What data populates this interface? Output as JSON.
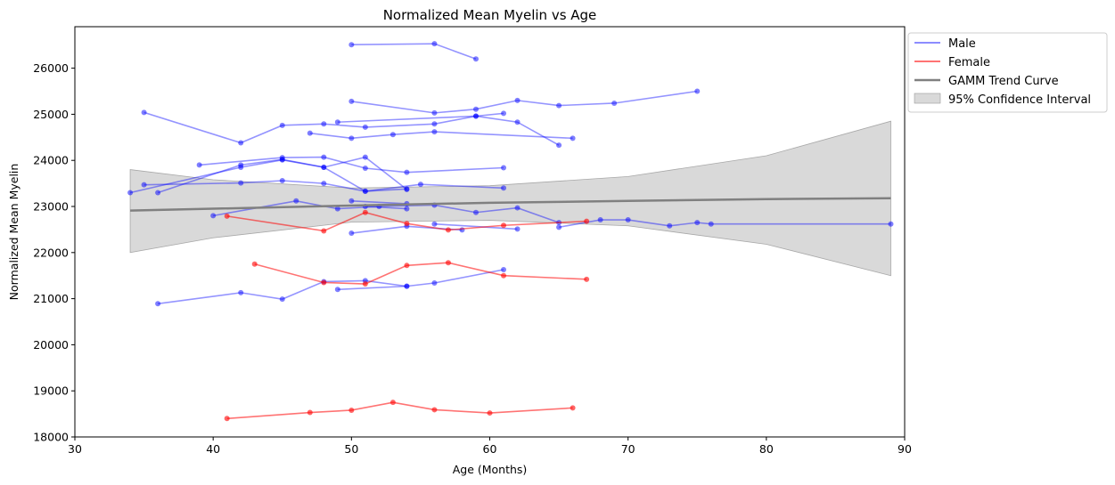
{
  "chart_data": {
    "type": "line",
    "title": "Normalized Mean Myelin vs Age",
    "xlabel": "Age (Months)",
    "ylabel": "Normalized Mean Myelin",
    "xlim": [
      30,
      90
    ],
    "ylim": [
      18000,
      26900
    ],
    "x_ticks": [
      "30",
      "40",
      "50",
      "60",
      "70",
      "80",
      "90"
    ],
    "y_ticks": [
      "18000",
      "19000",
      "20000",
      "21000",
      "22000",
      "23000",
      "24000",
      "25000",
      "26000"
    ],
    "colors": {
      "male": "#0000ff",
      "female": "#ff0000",
      "trend": "#808080",
      "ci": "#c0c0c0"
    },
    "legend": {
      "placement": "outside-top-right",
      "entries": [
        "Male",
        "Female",
        "GAMM Trend Curve",
        "95% Confidence Interval"
      ]
    },
    "trend": {
      "x": [
        34,
        50,
        60,
        70,
        80,
        89
      ],
      "y": [
        22910,
        23020,
        23080,
        23120,
        23160,
        23180
      ]
    },
    "confidence_interval": {
      "x": [
        34,
        40,
        50,
        60,
        70,
        80,
        89
      ],
      "upper": [
        23800,
        23580,
        23400,
        23450,
        23650,
        24100,
        24850
      ],
      "lower": [
        22000,
        22320,
        22660,
        22700,
        22580,
        22180,
        21500
      ]
    },
    "series": [
      {
        "group": "male",
        "x": [
          50,
          56,
          59
        ],
        "y": [
          26510,
          26530,
          26200
        ]
      },
      {
        "group": "male",
        "x": [
          50,
          56,
          59,
          62,
          65,
          69,
          75
        ],
        "y": [
          25280,
          25030,
          25110,
          25300,
          25190,
          25240,
          25500
        ]
      },
      {
        "group": "male",
        "x": [
          35,
          42,
          45,
          48,
          51,
          56,
          59,
          61
        ],
        "y": [
          25040,
          24380,
          24760,
          24790,
          24720,
          24790,
          24960,
          25020
        ]
      },
      {
        "group": "male",
        "x": [
          47,
          50,
          53,
          56,
          66
        ],
        "y": [
          24590,
          24480,
          24560,
          24620,
          24480
        ]
      },
      {
        "group": "male",
        "x": [
          49,
          59,
          62,
          65
        ],
        "y": [
          24830,
          24960,
          24830,
          24330
        ]
      },
      {
        "group": "male",
        "x": [
          39,
          45,
          48,
          51,
          54,
          61
        ],
        "y": [
          23900,
          24060,
          24070,
          23830,
          23740,
          23840
        ]
      },
      {
        "group": "male",
        "x": [
          34,
          42,
          45,
          48,
          51,
          54
        ],
        "y": [
          23300,
          23850,
          24010,
          23850,
          24070,
          23370
        ]
      },
      {
        "group": "male",
        "x": [
          36,
          42,
          45,
          48,
          51,
          55,
          61
        ],
        "y": [
          23300,
          23900,
          24020,
          23850,
          23330,
          23480,
          23400
        ]
      },
      {
        "group": "male",
        "x": [
          35,
          42,
          45,
          48,
          51,
          54
        ],
        "y": [
          23470,
          23510,
          23560,
          23500,
          23330,
          23380
        ]
      },
      {
        "group": "male",
        "x": [
          40,
          46,
          49,
          52,
          56,
          59,
          62,
          65
        ],
        "y": [
          22800,
          23120,
          22950,
          23000,
          23030,
          22870,
          22970,
          22650
        ]
      },
      {
        "group": "male",
        "x": [
          50,
          54
        ],
        "y": [
          23120,
          23060
        ]
      },
      {
        "group": "male",
        "x": [
          51,
          54
        ],
        "y": [
          23000,
          22950
        ]
      },
      {
        "group": "male",
        "x": [
          56,
          62
        ],
        "y": [
          22620,
          22510
        ]
      },
      {
        "group": "male",
        "x": [
          50,
          54,
          58
        ],
        "y": [
          22420,
          22570,
          22490
        ]
      },
      {
        "group": "male",
        "x": [
          65,
          68,
          70,
          73,
          75,
          76,
          89
        ],
        "y": [
          22550,
          22710,
          22710,
          22580,
          22650,
          22620,
          22620
        ]
      },
      {
        "group": "male",
        "x": [
          36,
          42,
          45,
          48,
          51,
          54,
          56,
          61
        ],
        "y": [
          20890,
          21130,
          20990,
          21370,
          21390,
          21270,
          21340,
          21630
        ]
      },
      {
        "group": "male",
        "x": [
          49,
          54
        ],
        "y": [
          21200,
          21270
        ]
      },
      {
        "group": "female",
        "x": [
          41,
          48,
          51,
          54,
          57,
          61,
          67
        ],
        "y": [
          22790,
          22470,
          22870,
          22630,
          22490,
          22590,
          22680
        ]
      },
      {
        "group": "female",
        "x": [
          43,
          48,
          51,
          54,
          57,
          61,
          67
        ],
        "y": [
          21750,
          21350,
          21320,
          21720,
          21780,
          21500,
          21420
        ]
      },
      {
        "group": "female",
        "x": [
          41,
          47,
          50,
          53,
          56,
          60,
          66
        ],
        "y": [
          18400,
          18530,
          18580,
          18750,
          18590,
          18520,
          18630
        ]
      }
    ]
  }
}
